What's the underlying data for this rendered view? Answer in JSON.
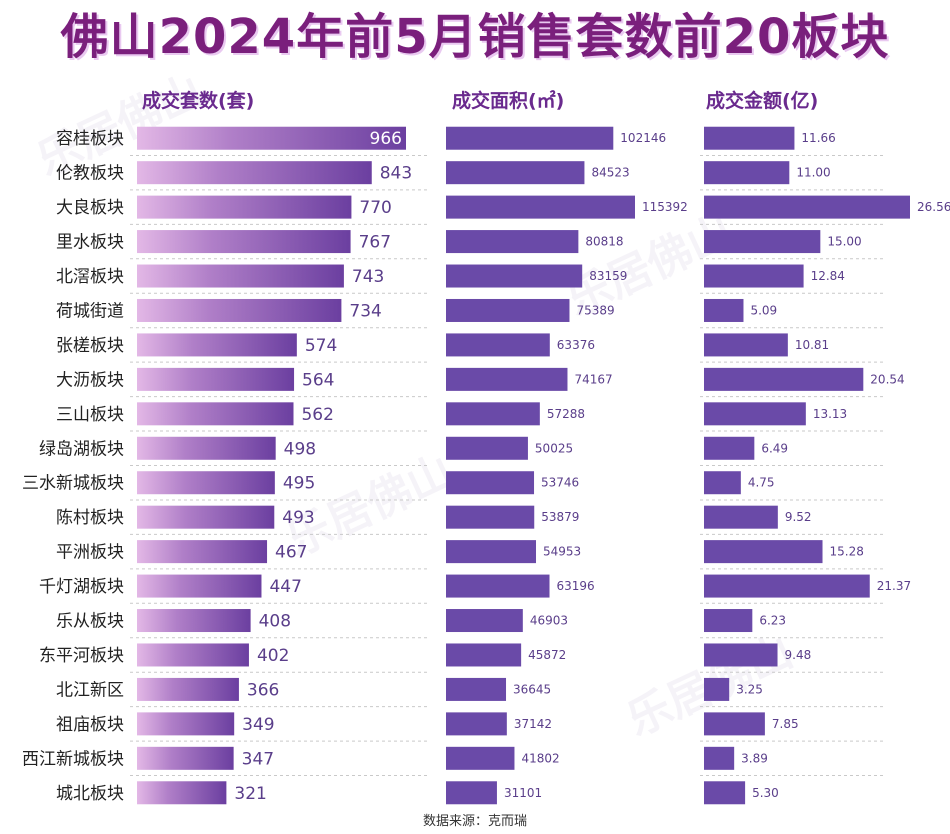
{
  "title": "佛山2024年前5月销售套数前20板块",
  "source": "数据来源：克而瑞",
  "watermark": "乐居佛山",
  "colors": {
    "title": "#7a1f7c",
    "bar_left_start": "#e3b8e6",
    "bar_left_end": "#6b3fa0",
    "bar": "#6a4aa8",
    "label": "#5a3e8a"
  },
  "chart_data": {
    "type": "bar",
    "orientation": "horizontal",
    "categories": [
      "容桂板块",
      "伦教板块",
      "大良板块",
      "里水板块",
      "北滘板块",
      "荷城街道",
      "张槎板块",
      "大沥板块",
      "三山板块",
      "绿岛湖板块",
      "三水新城板块",
      "陈村板块",
      "平洲板块",
      "千灯湖板块",
      "乐从板块",
      "东平河板块",
      "北江新区",
      "祖庙板块",
      "西江新城板块",
      "城北板块"
    ],
    "series": [
      {
        "name": "成交套数(套)",
        "values": [
          966,
          843,
          770,
          767,
          743,
          734,
          574,
          564,
          562,
          498,
          495,
          493,
          467,
          447,
          408,
          402,
          366,
          349,
          347,
          321
        ]
      },
      {
        "name": "成交面积(㎡)",
        "values": [
          102146,
          84523,
          115392,
          80818,
          83159,
          75389,
          63376,
          74167,
          57288,
          50025,
          53746,
          53879,
          54953,
          63196,
          46903,
          45872,
          36645,
          37142,
          41802,
          31101
        ]
      },
      {
        "name": "成交金额(亿)",
        "values": [
          "11.66",
          "11.00",
          "26.56",
          "15.00",
          "12.84",
          "5.09",
          "10.81",
          "20.54",
          "13.13",
          "6.49",
          "4.75",
          "9.52",
          "15.28",
          "21.37",
          "6.23",
          "9.48",
          "3.25",
          "7.85",
          "3.89",
          "5.30"
        ]
      }
    ]
  }
}
